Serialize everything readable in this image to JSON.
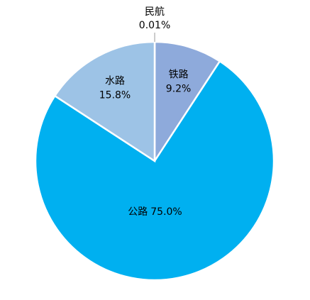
{
  "chart_data": {
    "type": "pie",
    "categories": [
      "民航",
      "铁路",
      "公路",
      "水路"
    ],
    "values": [
      0.01,
      9.2,
      75.0,
      15.8
    ],
    "value_labels": [
      "0.01%",
      "9.2%",
      "75.0%",
      "15.8%"
    ],
    "colors": [
      "#a5a5a5",
      "#8eaadb",
      "#00b0f0",
      "#9dc3e6"
    ]
  }
}
